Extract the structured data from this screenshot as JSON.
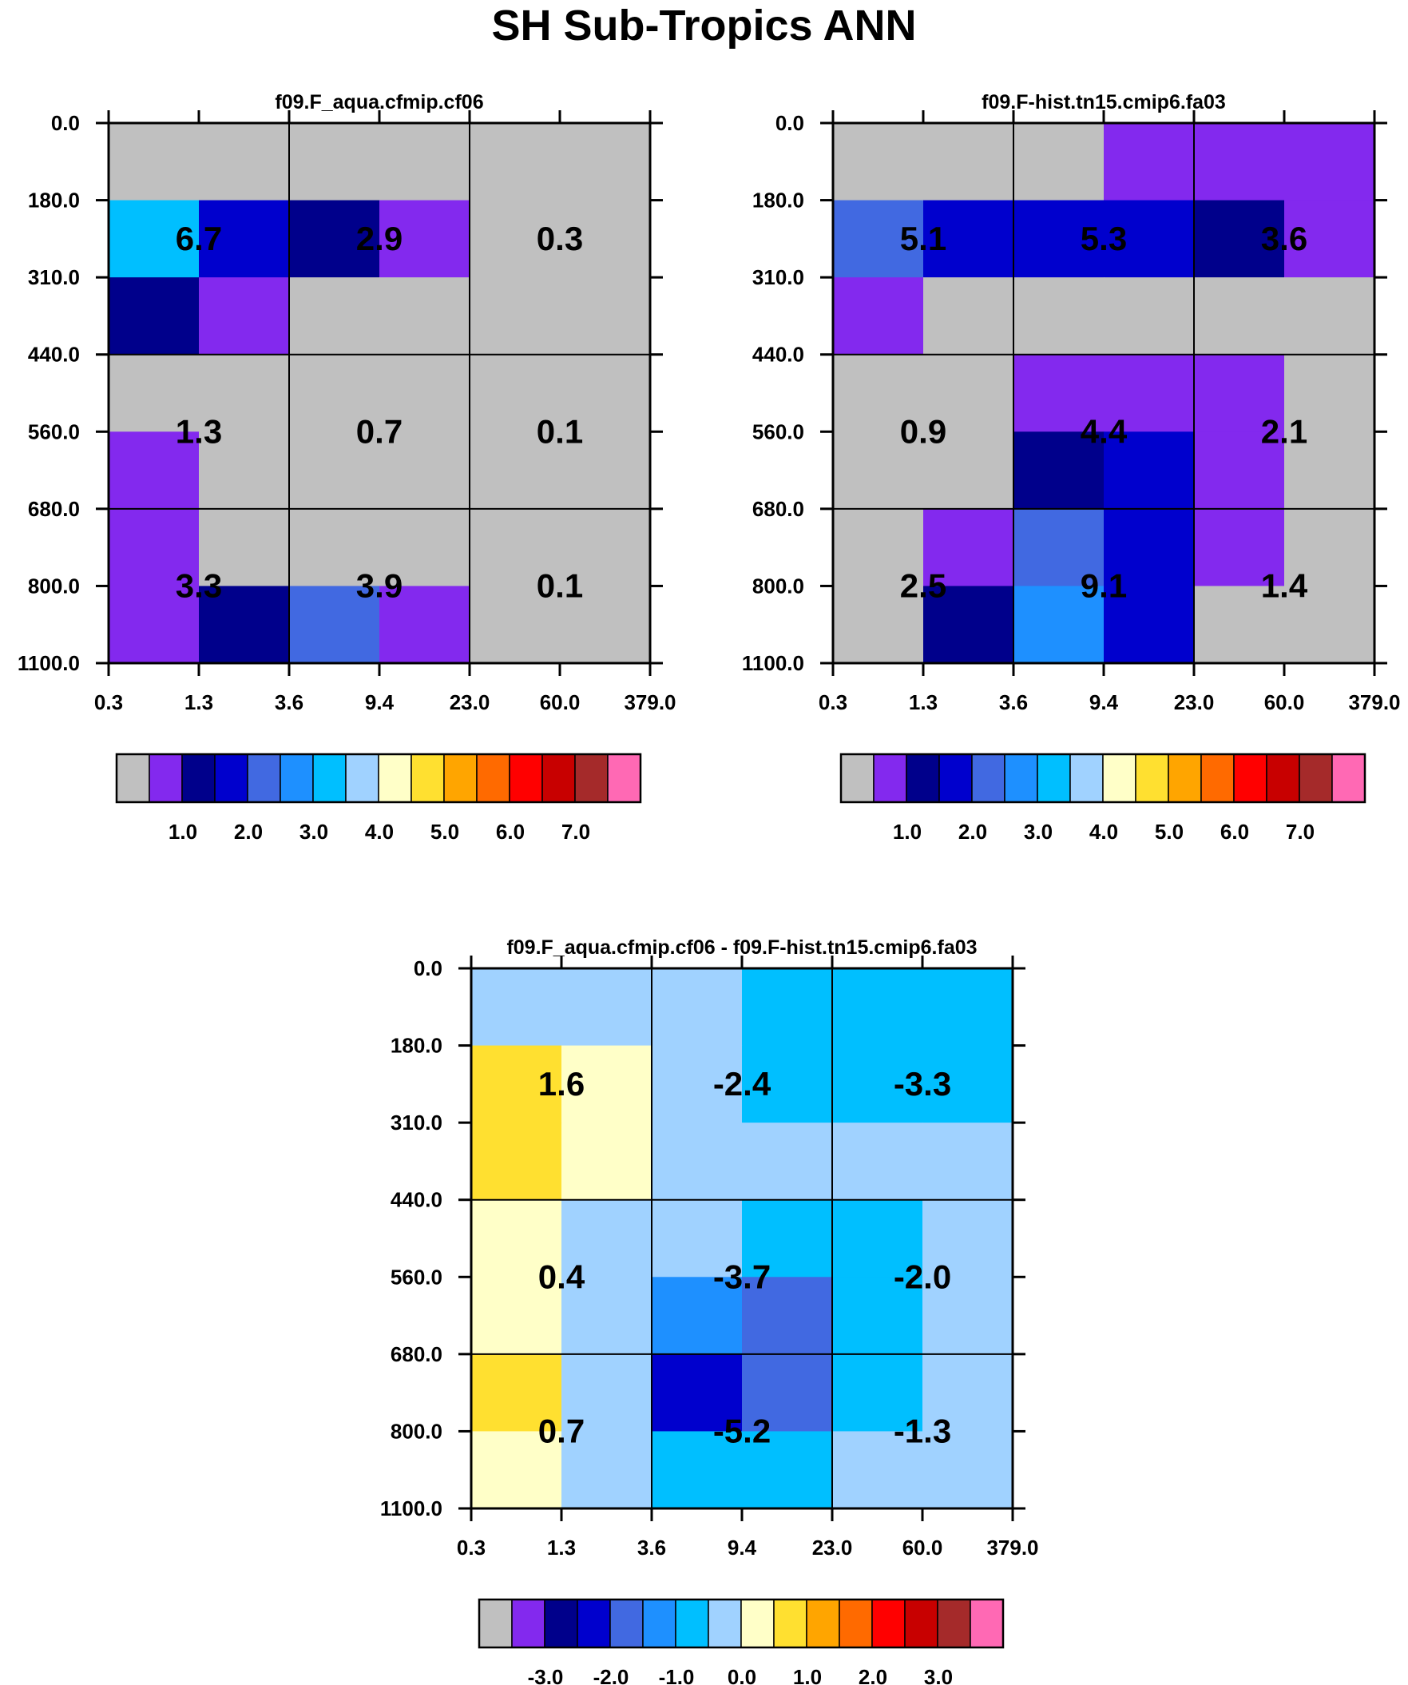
{
  "figure": {
    "title": "SH Sub-Tropics ANN"
  },
  "colormap": {
    "colors": [
      "#c0c0c0",
      "#8329ee",
      "#00008b",
      "#0000cd",
      "#4169e1",
      "#1e90ff",
      "#00bfff",
      "#a0d2ff",
      "#ffffc8",
      "#ffe030",
      "#ffa500",
      "#ff6a00",
      "#ff0000",
      "#c80000",
      "#a52a2a",
      "#ff69b4"
    ],
    "cell_border": "#000000",
    "axis_color": "#000000"
  },
  "chart_data": [
    {
      "type": "heatmap",
      "title": "f09.F_aqua.cfmip.cf06",
      "x_tick_labels": [
        "0.3",
        "1.3",
        "3.6",
        "9.4",
        "23.0",
        "60.0",
        "379.0"
      ],
      "y_tick_labels": [
        "0.0",
        "180.0",
        "310.0",
        "440.0",
        "560.0",
        "680.0",
        "800.0",
        "1100.0"
      ],
      "cells": [
        [
          0,
          0,
          0,
          0,
          0,
          0
        ],
        [
          6,
          3,
          2,
          1,
          0,
          0
        ],
        [
          2,
          1,
          0,
          0,
          0,
          0
        ],
        [
          0,
          0,
          0,
          0,
          0,
          0
        ],
        [
          1,
          0,
          0,
          0,
          0,
          0
        ],
        [
          1,
          0,
          0,
          0,
          0,
          0
        ],
        [
          1,
          2,
          4,
          1,
          0,
          0
        ]
      ],
      "values": [
        [
          "6.7",
          "2.9",
          "0.3"
        ],
        [
          "1.3",
          "0.7",
          "0.1"
        ],
        [
          "3.3",
          "3.9",
          "0.1"
        ]
      ],
      "colorbar_labels": [
        "1.0",
        "2.0",
        "3.0",
        "4.0",
        "5.0",
        "6.0",
        "7.0"
      ]
    },
    {
      "type": "heatmap",
      "title": "f09.F-hist.tn15.cmip6.fa03",
      "x_tick_labels": [
        "0.3",
        "1.3",
        "3.6",
        "9.4",
        "23.0",
        "60.0",
        "379.0"
      ],
      "y_tick_labels": [
        "0.0",
        "180.0",
        "310.0",
        "440.0",
        "560.0",
        "680.0",
        "800.0",
        "1100.0"
      ],
      "cells": [
        [
          0,
          0,
          0,
          1,
          1,
          1
        ],
        [
          4,
          3,
          3,
          3,
          2,
          1
        ],
        [
          1,
          0,
          0,
          0,
          0,
          0
        ],
        [
          0,
          0,
          1,
          1,
          1,
          0
        ],
        [
          0,
          0,
          2,
          3,
          1,
          0
        ],
        [
          0,
          1,
          4,
          3,
          1,
          0
        ],
        [
          0,
          2,
          5,
          3,
          0,
          0
        ]
      ],
      "values": [
        [
          "5.1",
          "5.3",
          "3.6"
        ],
        [
          "0.9",
          "4.4",
          "2.1"
        ],
        [
          "2.5",
          "9.1",
          "1.4"
        ]
      ],
      "colorbar_labels": [
        "1.0",
        "2.0",
        "3.0",
        "4.0",
        "5.0",
        "6.0",
        "7.0"
      ]
    },
    {
      "type": "heatmap",
      "title": "f09.F_aqua.cfmip.cf06 - f09.F-hist.tn15.cmip6.fa03",
      "x_tick_labels": [
        "0.3",
        "1.3",
        "3.6",
        "9.4",
        "23.0",
        "60.0",
        "379.0"
      ],
      "y_tick_labels": [
        "0.0",
        "180.0",
        "310.0",
        "440.0",
        "560.0",
        "680.0",
        "800.0",
        "1100.0"
      ],
      "cells": [
        [
          7,
          7,
          7,
          6,
          6,
          6
        ],
        [
          9,
          8,
          7,
          6,
          6,
          6
        ],
        [
          9,
          8,
          7,
          7,
          7,
          7
        ],
        [
          8,
          7,
          7,
          6,
          6,
          7
        ],
        [
          8,
          7,
          5,
          4,
          6,
          7
        ],
        [
          9,
          7,
          3,
          4,
          6,
          7
        ],
        [
          8,
          7,
          6,
          6,
          7,
          7
        ]
      ],
      "values": [
        [
          "1.6",
          "-2.4",
          "-3.3"
        ],
        [
          "0.4",
          "-3.7",
          "-2.0"
        ],
        [
          "0.7",
          "-5.2",
          "-1.3"
        ]
      ],
      "colorbar_labels": [
        "-3.0",
        "-2.0",
        "-1.0",
        "0.0",
        "1.0",
        "2.0",
        "3.0"
      ]
    }
  ]
}
